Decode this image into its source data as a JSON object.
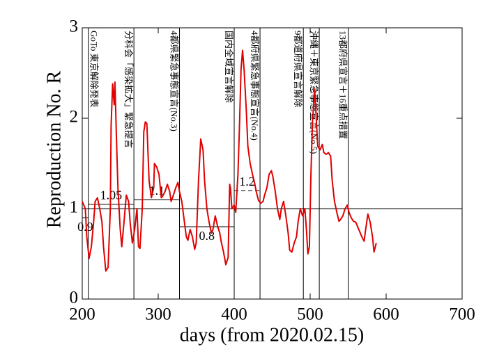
{
  "chart_data": {
    "type": "line",
    "xlabel": "days   (from 2020.02.15)",
    "ylabel": "Reproduction No.  R",
    "xlim": [
      200,
      700
    ],
    "ylim": [
      0,
      3
    ],
    "xticks": [
      200,
      300,
      400,
      500,
      600,
      700
    ],
    "yticks": [
      0,
      1,
      2,
      3
    ],
    "reference_line": 1,
    "series": [
      {
        "color": "#e00000",
        "x": [
          200,
          204,
          206,
          209,
          212,
          215,
          217,
          220,
          223,
          226,
          228,
          231,
          234,
          237,
          238,
          240,
          242,
          243,
          245,
          247,
          250,
          252,
          255,
          258,
          261,
          263,
          266,
          269,
          272,
          274,
          276,
          279,
          281,
          283,
          285,
          288,
          291,
          294,
          295,
          298,
          301,
          304,
          306,
          309,
          312,
          315,
          317,
          320,
          323,
          326,
          328,
          331,
          334,
          337,
          339,
          342,
          345,
          348,
          350,
          353,
          356,
          359,
          361,
          364,
          367,
          370,
          372,
          375,
          378,
          381,
          383,
          386,
          389,
          392,
          394,
          395,
          397,
          400,
          402,
          405,
          407,
          409,
          411,
          413,
          416,
          418,
          421,
          424,
          427,
          429,
          432,
          435,
          438,
          440,
          443,
          446,
          449,
          451,
          454,
          457,
          460,
          462,
          465,
          468,
          471,
          473,
          476,
          479,
          482,
          484,
          487,
          490,
          493,
          495,
          497,
          499,
          501,
          503,
          505,
          506,
          508,
          510,
          513,
          516,
          518,
          521,
          524,
          527,
          529,
          532,
          535,
          538,
          540,
          543,
          546,
          549,
          551,
          554,
          557,
          560,
          562,
          565,
          568,
          571,
          573,
          576,
          579,
          582,
          584,
          587
        ],
        "values": [
          1.08,
          1.0,
          0.69,
          0.45,
          0.58,
          0.85,
          1.08,
          1.12,
          1.0,
          0.85,
          0.58,
          0.31,
          0.35,
          1.0,
          1.92,
          2.38,
          2.15,
          2.4,
          1.77,
          1.23,
          0.77,
          0.58,
          0.85,
          1.15,
          1.08,
          0.85,
          0.62,
          0.77,
          1.0,
          0.58,
          0.56,
          1.0,
          1.85,
          1.96,
          1.94,
          1.31,
          1.12,
          1.23,
          1.5,
          1.46,
          1.38,
          1.12,
          1.14,
          1.19,
          1.27,
          1.19,
          1.08,
          1.15,
          1.23,
          1.29,
          1.19,
          1.08,
          0.88,
          0.69,
          0.65,
          0.77,
          0.69,
          0.55,
          0.62,
          1.31,
          1.77,
          1.65,
          1.31,
          1.0,
          0.85,
          0.73,
          0.77,
          0.92,
          0.81,
          0.73,
          0.63,
          0.52,
          0.38,
          0.46,
          1.27,
          1.23,
          1.0,
          1.04,
          0.96,
          1.38,
          1.92,
          2.54,
          2.75,
          2.54,
          2.08,
          1.69,
          1.5,
          1.38,
          1.28,
          1.19,
          1.09,
          1.06,
          1.08,
          1.15,
          1.23,
          1.38,
          1.42,
          1.35,
          1.19,
          1.0,
          0.88,
          1.0,
          1.08,
          0.92,
          0.73,
          0.54,
          0.52,
          0.62,
          0.69,
          0.85,
          1.0,
          0.92,
          1.0,
          0.77,
          0.5,
          0.58,
          1.38,
          1.96,
          2.19,
          2.32,
          2.0,
          1.69,
          1.65,
          1.71,
          1.62,
          1.6,
          1.62,
          1.58,
          1.31,
          1.08,
          0.96,
          0.86,
          0.88,
          0.92,
          1.0,
          1.04,
          0.96,
          0.9,
          0.86,
          0.85,
          0.81,
          0.75,
          0.69,
          0.64,
          0.77,
          0.94,
          0.85,
          0.69,
          0.52,
          0.62
        ]
      }
    ],
    "levels": [
      {
        "start": 200,
        "end": 208,
        "value": 0.9
      },
      {
        "start": 208,
        "end": 268,
        "value": 1.05
      },
      {
        "start": 268,
        "end": 328,
        "value": 1.1
      },
      {
        "start": 328,
        "end": 400,
        "value": 0.8
      },
      {
        "start": 400,
        "end": 434,
        "value": 1.2,
        "style": "dashed"
      }
    ],
    "events": [
      {
        "x": 208,
        "label": "GoTo 東京解除発表"
      },
      {
        "x": 268,
        "label": "分科会「感染拡大」緊急提言"
      },
      {
        "x": 328,
        "label": "4都県緊急事態宣言(No.3)"
      },
      {
        "x": 400,
        "label": "国内全域宣言解除"
      },
      {
        "x": 434,
        "label": "4都府県緊急事態宣言(No.4)"
      },
      {
        "x": 491,
        "label": "9都道府県宣言解除"
      },
      {
        "x": 512,
        "label": "沖縄＋東京緊急事態宣言(No.5)"
      },
      {
        "x": 550,
        "label": "13都府県宣言＋16重点措置"
      }
    ]
  }
}
